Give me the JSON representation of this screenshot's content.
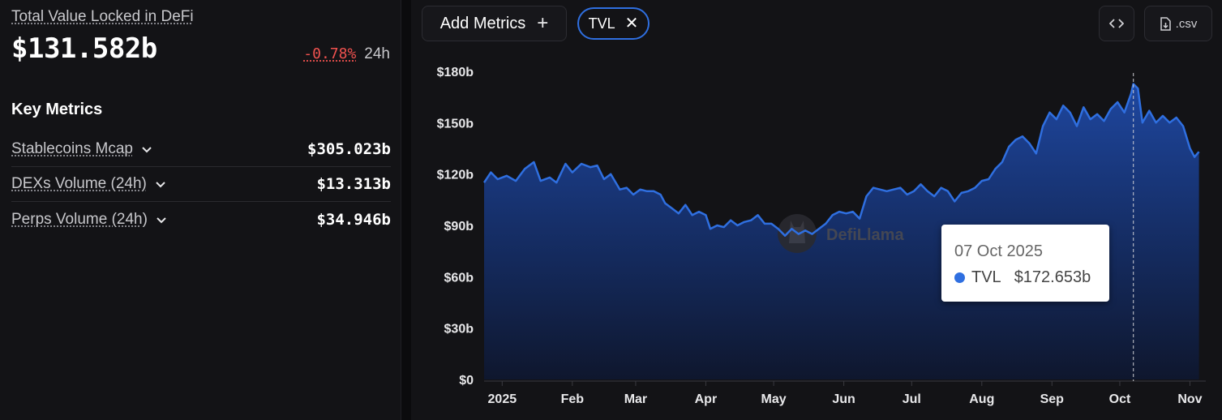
{
  "summary": {
    "title": "Total Value Locked in DeFi",
    "value": "$131.582b",
    "change": "-0.78%",
    "period": "24h"
  },
  "key_metrics": {
    "title": "Key Metrics",
    "items": [
      {
        "label": "Stablecoins Mcap",
        "value": "$305.023b"
      },
      {
        "label": "DEXs Volume (24h)",
        "value": "$13.313b"
      },
      {
        "label": "Perps Volume (24h)",
        "value": "$34.946b"
      }
    ]
  },
  "toolbar": {
    "add_metrics_label": "Add Metrics",
    "add_icon": "plus-icon",
    "chip_label": "TVL",
    "chip_remove_icon": "close-icon",
    "embed_icon": "code-icon",
    "csv_label": ".csv",
    "csv_icon": "file-download-icon"
  },
  "watermark": "DefiLlama",
  "tooltip": {
    "date": "07 Oct 2025",
    "series": "TVL",
    "value": "$172.653b"
  },
  "colors": {
    "line": "#2f6fe0",
    "negative": "#f0524f",
    "background": "#131316"
  },
  "chart_data": {
    "type": "area",
    "series_name": "TVL",
    "unit": "$b",
    "y_ticks": [
      "$0",
      "$30b",
      "$60b",
      "$90b",
      "$120b",
      "$150b",
      "$180b"
    ],
    "y_values": [
      0,
      30,
      60,
      90,
      120,
      150,
      180
    ],
    "ylim": [
      0,
      180
    ],
    "x_ticks": [
      "2025",
      "Feb",
      "Mar",
      "Apr",
      "May",
      "Jun",
      "Jul",
      "Aug",
      "Sep",
      "Oct",
      "Nov"
    ],
    "xlim_day": [
      -8,
      311
    ],
    "highlight_day": 279,
    "points": [
      [
        -8,
        115
      ],
      [
        -5,
        121
      ],
      [
        -2,
        117
      ],
      [
        2,
        119
      ],
      [
        6,
        116
      ],
      [
        10,
        123
      ],
      [
        14,
        127
      ],
      [
        17,
        116
      ],
      [
        21,
        118
      ],
      [
        24,
        115
      ],
      [
        28,
        126
      ],
      [
        31,
        121
      ],
      [
        35,
        126
      ],
      [
        39,
        124
      ],
      [
        42,
        125
      ],
      [
        45,
        117
      ],
      [
        48,
        120
      ],
      [
        52,
        111
      ],
      [
        55,
        112
      ],
      [
        58,
        108
      ],
      [
        61,
        111
      ],
      [
        64,
        110
      ],
      [
        67,
        110
      ],
      [
        70,
        108
      ],
      [
        72,
        103
      ],
      [
        75,
        100
      ],
      [
        78,
        97
      ],
      [
        81,
        102
      ],
      [
        84,
        96
      ],
      [
        87,
        98
      ],
      [
        90,
        96
      ],
      [
        92,
        88
      ],
      [
        95,
        90
      ],
      [
        98,
        89
      ],
      [
        101,
        93
      ],
      [
        104,
        90
      ],
      [
        107,
        92
      ],
      [
        110,
        93
      ],
      [
        113,
        96
      ],
      [
        116,
        91
      ],
      [
        119,
        91
      ],
      [
        122,
        88
      ],
      [
        125,
        84
      ],
      [
        128,
        88
      ],
      [
        131,
        85
      ],
      [
        134,
        87
      ],
      [
        137,
        85
      ],
      [
        140,
        88
      ],
      [
        143,
        91
      ],
      [
        146,
        96
      ],
      [
        149,
        98
      ],
      [
        152,
        97
      ],
      [
        155,
        98
      ],
      [
        158,
        94
      ],
      [
        161,
        107
      ],
      [
        164,
        112
      ],
      [
        167,
        111
      ],
      [
        170,
        110
      ],
      [
        173,
        111
      ],
      [
        176,
        112
      ],
      [
        179,
        108
      ],
      [
        182,
        110
      ],
      [
        185,
        114
      ],
      [
        188,
        110
      ],
      [
        191,
        107
      ],
      [
        194,
        112
      ],
      [
        197,
        110
      ],
      [
        200,
        104
      ],
      [
        203,
        109
      ],
      [
        206,
        110
      ],
      [
        209,
        112
      ],
      [
        212,
        116
      ],
      [
        215,
        117
      ],
      [
        218,
        123
      ],
      [
        221,
        127
      ],
      [
        224,
        136
      ],
      [
        227,
        140
      ],
      [
        230,
        142
      ],
      [
        233,
        138
      ],
      [
        236,
        132
      ],
      [
        239,
        148
      ],
      [
        242,
        156
      ],
      [
        245,
        152
      ],
      [
        248,
        160
      ],
      [
        251,
        156
      ],
      [
        254,
        148
      ],
      [
        257,
        159
      ],
      [
        260,
        152
      ],
      [
        263,
        155
      ],
      [
        266,
        151
      ],
      [
        269,
        158
      ],
      [
        272,
        162
      ],
      [
        275,
        156
      ],
      [
        278,
        167
      ],
      [
        279,
        172.653
      ],
      [
        281,
        170
      ],
      [
        283,
        150
      ],
      [
        286,
        157
      ],
      [
        289,
        150
      ],
      [
        292,
        154
      ],
      [
        295,
        150
      ],
      [
        298,
        153
      ],
      [
        301,
        148
      ],
      [
        304,
        135
      ],
      [
        306,
        130
      ],
      [
        308,
        133
      ]
    ]
  }
}
